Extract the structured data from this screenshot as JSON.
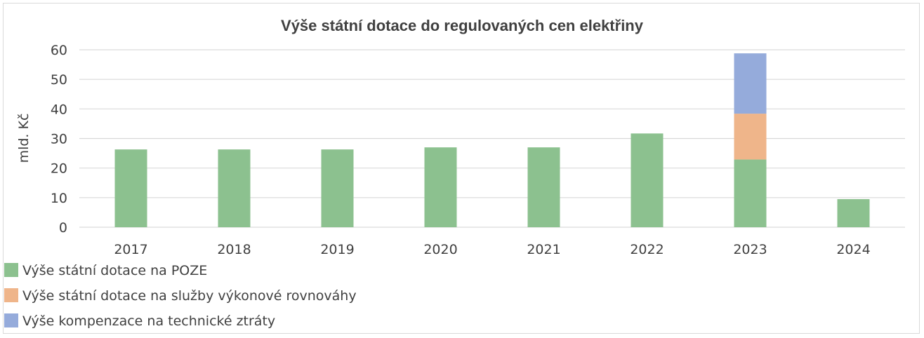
{
  "chart_data": {
    "type": "bar",
    "stacked": true,
    "title": "Výše státní dotace do regulovaných cen elektřiny",
    "xlabel": "",
    "ylabel": "mld. Kč",
    "ylim": [
      0,
      60
    ],
    "yticks": [
      0,
      10,
      20,
      30,
      40,
      50,
      60
    ],
    "grid": true,
    "legend_position": "bottom-left",
    "categories": [
      "2017",
      "2018",
      "2019",
      "2020",
      "2021",
      "2022",
      "2023",
      "2024"
    ],
    "series": [
      {
        "name": "Výše státní dotace na POZE",
        "color": "#8cc18f",
        "values": [
          26.3,
          26.3,
          26.3,
          27.0,
          27.0,
          31.7,
          22.9,
          9.5
        ]
      },
      {
        "name": "Výše státní dotace na služby výkonové rovnováhy",
        "color": "#efb58a",
        "values": [
          0,
          0,
          0,
          0,
          0,
          0,
          15.5,
          0
        ]
      },
      {
        "name": "Výše kompenzace na technické ztráty",
        "color": "#95abdb",
        "values": [
          0,
          0,
          0,
          0,
          0,
          0,
          20.4,
          0
        ]
      }
    ]
  }
}
